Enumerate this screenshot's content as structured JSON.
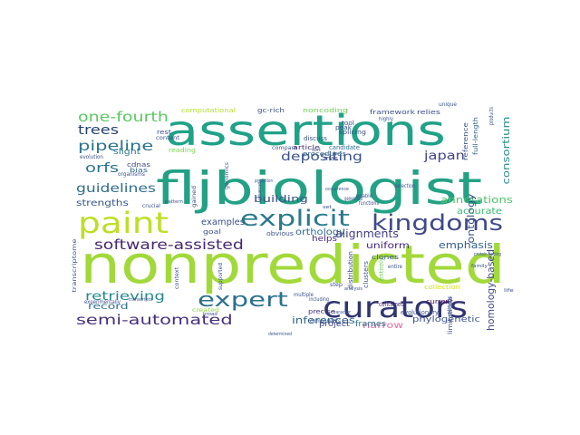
{
  "wordcloud": {
    "words": [
      {
        "text": "nonpredicted",
        "color": "#a2d93a"
      },
      {
        "text": "fljbiologist",
        "color": "#23a184"
      },
      {
        "text": "assertions",
        "color": "#1fa287"
      },
      {
        "text": "paint",
        "color": "#bddf26"
      },
      {
        "text": "curators",
        "color": "#30346e"
      },
      {
        "text": "explicit",
        "color": "#2b7a8e"
      },
      {
        "text": "kingdoms",
        "color": "#3f4a8a"
      },
      {
        "text": "expert",
        "color": "#2c718e"
      },
      {
        "text": "software-assisted",
        "color": "#47276f"
      },
      {
        "text": "semi-automated",
        "color": "#46307e"
      },
      {
        "text": "pipeline",
        "color": "#2b748e"
      },
      {
        "text": "one-fourth",
        "color": "#5bc862"
      },
      {
        "text": "trees",
        "color": "#25436e"
      },
      {
        "text": "orfs",
        "color": "#2b758e"
      },
      {
        "text": "guidelines",
        "color": "#2e6d8e"
      },
      {
        "text": "depositing",
        "color": "#3b528b"
      },
      {
        "text": "japan",
        "color": "#404688"
      },
      {
        "text": "retrieving",
        "color": "#23888e"
      },
      {
        "text": "alignments",
        "color": "#433e85"
      },
      {
        "text": "emphasis",
        "color": "#355f8d"
      },
      {
        "text": "annotations",
        "color": "#4ec36b"
      },
      {
        "text": "building",
        "color": "#3b528b"
      },
      {
        "text": "inferences",
        "color": "#31668e"
      },
      {
        "text": "ontology",
        "color": "#3b518b"
      },
      {
        "text": "homology-based",
        "color": "#3f4889"
      },
      {
        "text": "consortium",
        "color": "#22908c"
      },
      {
        "text": "uniform",
        "color": "#46267a"
      },
      {
        "text": "strengths",
        "color": "#38588c"
      },
      {
        "text": "examples",
        "color": "#3b528b"
      },
      {
        "text": "orthology",
        "color": "#2f6b8e"
      },
      {
        "text": "accurate",
        "color": "#3cbb75"
      },
      {
        "text": "record",
        "color": "#2d708e"
      },
      {
        "text": "narrow",
        "color": "#ec6a9b"
      },
      {
        "text": "phylogenetic",
        "color": "#3b528b"
      },
      {
        "text": "frames",
        "color": "#2c718e"
      },
      {
        "text": "project",
        "color": "#414487"
      },
      {
        "text": "helps",
        "color": "#482878"
      },
      {
        "text": "slight",
        "color": "#2a778e"
      },
      {
        "text": "computational",
        "color": "#b5de2b"
      },
      {
        "text": "gc-rich",
        "color": "#3b528b"
      },
      {
        "text": "noncoding",
        "color": "#6ece58"
      },
      {
        "text": "framework",
        "color": "#3b528b"
      },
      {
        "text": "relies",
        "color": "#3e4c8a"
      },
      {
        "text": "procedures",
        "color": "#35608d"
      },
      {
        "text": "cdnas",
        "color": "#3e4989"
      },
      {
        "text": "bias",
        "color": "#2f6c8e"
      },
      {
        "text": "goal",
        "color": "#3b528b"
      },
      {
        "text": "obvious",
        "color": "#3b528b"
      },
      {
        "text": "precise",
        "color": "#46327e"
      },
      {
        "text": "current",
        "color": "#440154"
      },
      {
        "text": "collection",
        "color": "#d2e21b"
      },
      {
        "text": "contained",
        "color": "#482475"
      },
      {
        "text": "entirely",
        "color": "#6ece58"
      },
      {
        "text": "evolutionary",
        "color": "#3b528b"
      },
      {
        "text": "distribution",
        "color": "#3f4889"
      },
      {
        "text": "clones",
        "color": "#3b528b"
      },
      {
        "text": "clusters",
        "color": "#3a548c"
      },
      {
        "text": "reference",
        "color": "#3b528b"
      },
      {
        "text": "full-length",
        "color": "#31668e"
      },
      {
        "text": "limitations",
        "color": "#3b528b"
      },
      {
        "text": "rnas",
        "color": "#3f4889"
      },
      {
        "text": "article",
        "color": "#46307e"
      },
      {
        "text": "candidate",
        "color": "#2c718e"
      },
      {
        "text": "discuss",
        "color": "#3b528b"
      },
      {
        "text": "peak",
        "color": "#3b528b"
      },
      {
        "text": "tool",
        "color": "#3b528b"
      },
      {
        "text": "splicing",
        "color": "#3b528b"
      },
      {
        "text": "rest",
        "color": "#3b528b"
      },
      {
        "text": "reading",
        "color": "#7ad151"
      },
      {
        "text": "content",
        "color": "#3b528b"
      },
      {
        "text": "evolution",
        "color": "#3b528b"
      },
      {
        "text": "compare",
        "color": "#3b528b"
      },
      {
        "text": "genomics",
        "color": "#3b528b"
      },
      {
        "text": "crucial",
        "color": "#3b528b"
      },
      {
        "text": "organisms",
        "color": "#3b528b"
      },
      {
        "text": "experimentally",
        "color": "#3b528b"
      },
      {
        "text": "gained",
        "color": "#3b528b"
      },
      {
        "text": "transcriptome",
        "color": "#3b528b"
      },
      {
        "text": "supported",
        "color": "#3b528b"
      },
      {
        "text": "context",
        "color": "#3b528b"
      },
      {
        "text": "entire",
        "color": "#3b528b"
      },
      {
        "text": "created",
        "color": "#8fd744"
      },
      {
        "text": "step",
        "color": "#3b528b"
      },
      {
        "text": "multiple",
        "color": "#3b528b"
      },
      {
        "text": "including",
        "color": "#3b528b"
      },
      {
        "text": "components",
        "color": "#3b528b"
      },
      {
        "text": "methods",
        "color": "#3b528b"
      },
      {
        "text": "unique",
        "color": "#3b528b"
      },
      {
        "text": "highly",
        "color": "#3b528b"
      },
      {
        "text": "products",
        "color": "#3b528b"
      },
      {
        "text": "enable",
        "color": "#3b528b"
      },
      {
        "text": "generated",
        "color": "#3b528b"
      },
      {
        "text": "functions",
        "color": "#3b528b"
      },
      {
        "text": "selection",
        "color": "#3b528b"
      },
      {
        "text": "protein-coding",
        "color": "#3b528b"
      },
      {
        "text": "family",
        "color": "#3b528b"
      },
      {
        "text": "life",
        "color": "#3b528b"
      },
      {
        "text": "determined",
        "color": "#3b528b"
      },
      {
        "text": "character",
        "color": "#3b528b"
      },
      {
        "text": "sequenced",
        "color": "#3b528b"
      },
      {
        "text": "prediction",
        "color": "#3b528b"
      },
      {
        "text": "pattern",
        "color": "#3b528b"
      },
      {
        "text": "broad",
        "color": "#3b528b"
      },
      {
        "text": "analysis",
        "color": "#3b528b"
      },
      {
        "text": "transcripts",
        "color": "#3b528b"
      },
      {
        "text": "sort",
        "color": "#3b528b"
      },
      {
        "text": "occurrence",
        "color": "#3b528b"
      },
      {
        "text": "set",
        "color": "#3b528b"
      }
    ]
  }
}
